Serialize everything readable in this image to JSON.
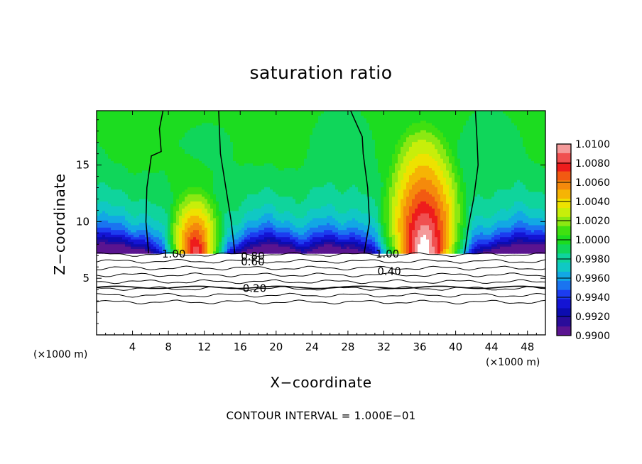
{
  "chart_data": {
    "type": "heatmap",
    "title": "saturation ratio",
    "xlabel": "X−coordinate",
    "ylabel": "Z−coordinate",
    "x_unit_label": "(×1000 m)",
    "footnote": "CONTOUR INTERVAL = 1.000E−01",
    "xlim": [
      0,
      50
    ],
    "ylim": [
      0,
      19.8
    ],
    "x_ticks": [
      4,
      8,
      12,
      16,
      20,
      24,
      28,
      32,
      36,
      40,
      44,
      48
    ],
    "y_ticks": [
      5,
      10,
      15
    ],
    "colorbar": {
      "min": 0.99,
      "max": 1.01,
      "labels": [
        "1.0100",
        "1.0080",
        "1.0060",
        "1.0040",
        "1.0020",
        "1.0000",
        "0.9980",
        "0.9960",
        "0.9940",
        "0.9920",
        "0.9900"
      ],
      "colors": [
        "#f49a9a",
        "#f05050",
        "#ee1c1c",
        "#f25a12",
        "#f58a0c",
        "#f6b404",
        "#eee200",
        "#c8ee0a",
        "#8ce812",
        "#40e010",
        "#1cdc20",
        "#10d65a",
        "#0fd49c",
        "#10c8c4",
        "#12a8e4",
        "#1a74f0",
        "#1c3cf0",
        "#1414d4",
        "#0c0cb0",
        "#2a0c9a",
        "#5a1490"
      ]
    },
    "contour_labels": [
      "1.00",
      "0.80",
      "0.60",
      "0.40",
      "0.20",
      "1.00"
    ],
    "plumes": [
      {
        "x_center": 11,
        "z_top": 11.2,
        "peak": 1.008
      },
      {
        "x_center": 36.5,
        "z_top": 14.5,
        "peak": 1.01
      }
    ],
    "saturated_cloud_base_z": 7.2
  }
}
